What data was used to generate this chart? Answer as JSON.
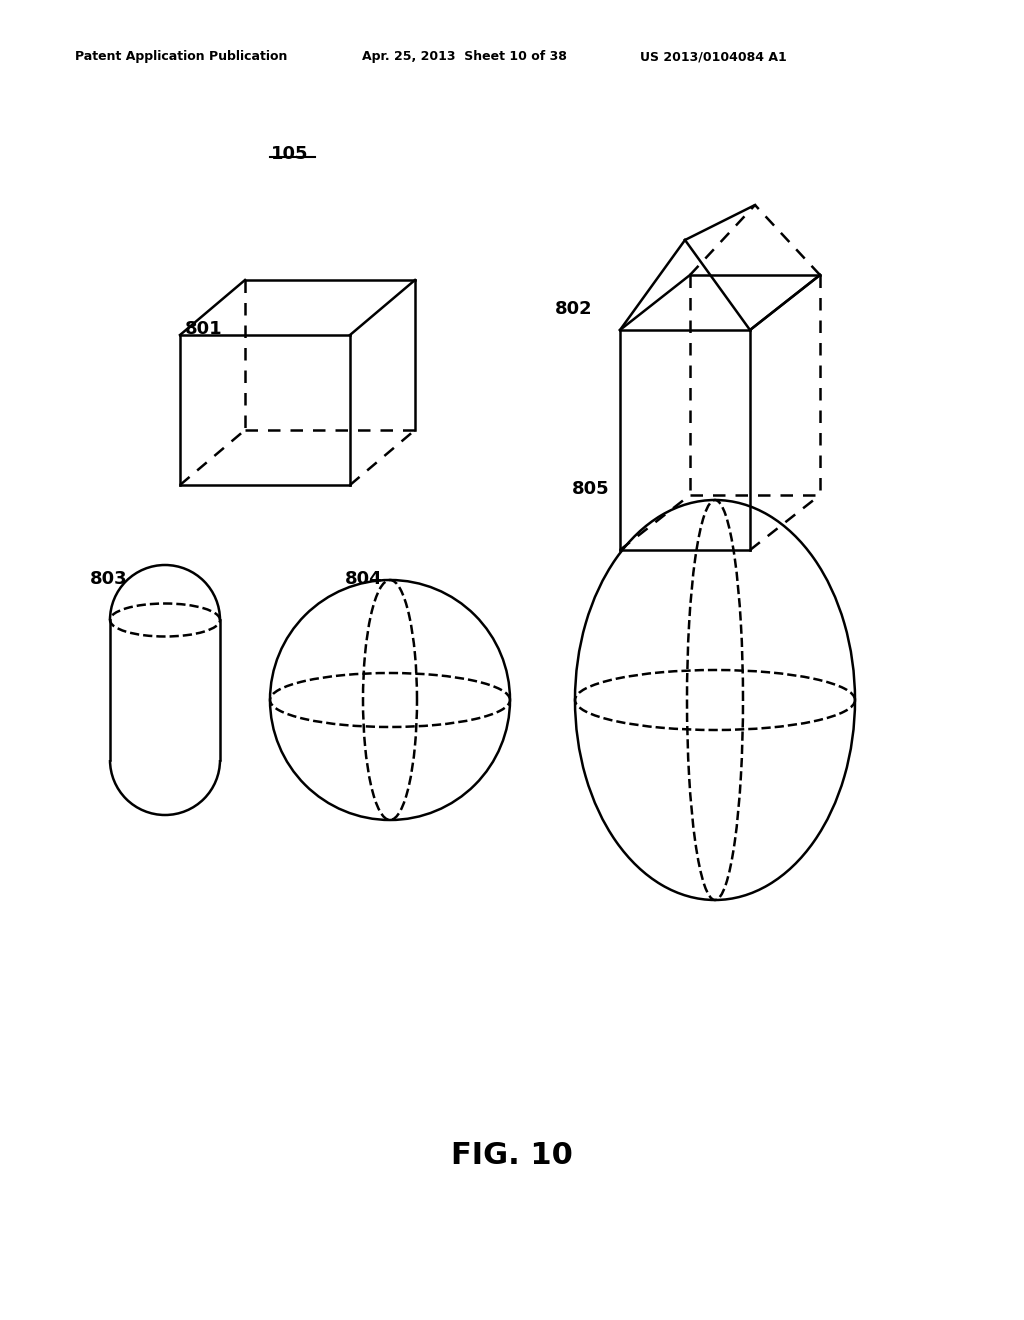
{
  "title": "FIG. 10",
  "patent_header_left": "Patent Application Publication",
  "patent_header_mid": "Apr. 25, 2013  Sheet 10 of 38",
  "patent_header_right": "US 2013/0104084 A1",
  "label_105": "105",
  "label_801": "801",
  "label_802": "802",
  "label_803": "803",
  "label_804": "804",
  "label_805": "805",
  "bg_color": "#ffffff",
  "line_color": "#000000",
  "dashed_color": "#000000",
  "lw": 1.8
}
